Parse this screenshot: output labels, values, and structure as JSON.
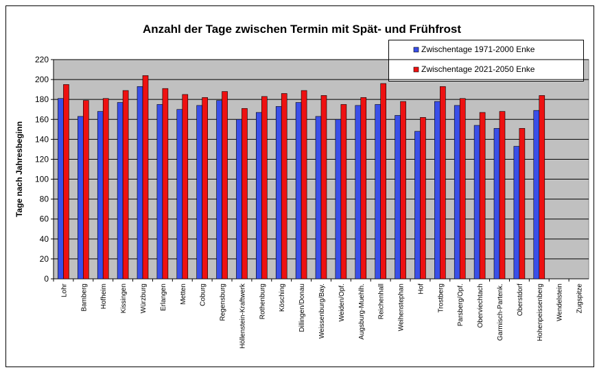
{
  "chart_data": {
    "type": "bar",
    "title": "Anzahl der Tage zwischen Termin mit Spät- und Frühfrost",
    "y_label": "Tage nach Jahresbeginn",
    "categories": [
      "Lohr",
      "Bamberg",
      "Hofheim",
      "Kissingen",
      "Würzburg",
      "Erlangen",
      "Metten",
      "Coburg",
      "Regensburg",
      "Höllenstein-Kraftwerk",
      "Rothenburg",
      "Kösching",
      "Dillingen/Donau",
      "Weissenburg/Bay.",
      "Weiden/Opf.",
      "Augsburg-Muehlh.",
      "Reichenhall",
      "Weihenstephan",
      "Hof",
      "Trostberg",
      "Parsberg/Opf.",
      "Oberviechtach",
      "Garmisch-Partenk.",
      "Oberstdorf",
      "Hohenpeissenberg",
      "Wendelstein",
      "Zugspitze"
    ],
    "series": [
      {
        "name": "Zwischentage 1971-2000 Enke",
        "color": "#3a4fe8",
        "values": [
          181,
          163,
          168,
          177,
          193,
          175,
          170,
          174,
          179,
          160,
          167,
          173,
          177,
          163,
          160,
          174,
          175,
          164,
          148,
          178,
          174,
          154,
          151,
          133,
          169,
          null,
          null
        ]
      },
      {
        "name": "Zwischentage 2021-2050 Enke",
        "color": "#ee1111",
        "values": [
          195,
          179,
          181,
          189,
          204,
          191,
          185,
          182,
          188,
          171,
          183,
          186,
          189,
          184,
          175,
          182,
          196,
          178,
          162,
          193,
          181,
          167,
          168,
          151,
          184,
          null,
          null
        ]
      }
    ],
    "ylim": [
      0,
      220
    ],
    "yticks": [
      0,
      20,
      40,
      60,
      80,
      100,
      120,
      140,
      160,
      180,
      200,
      220
    ],
    "grid": true,
    "legend": "top-right"
  }
}
